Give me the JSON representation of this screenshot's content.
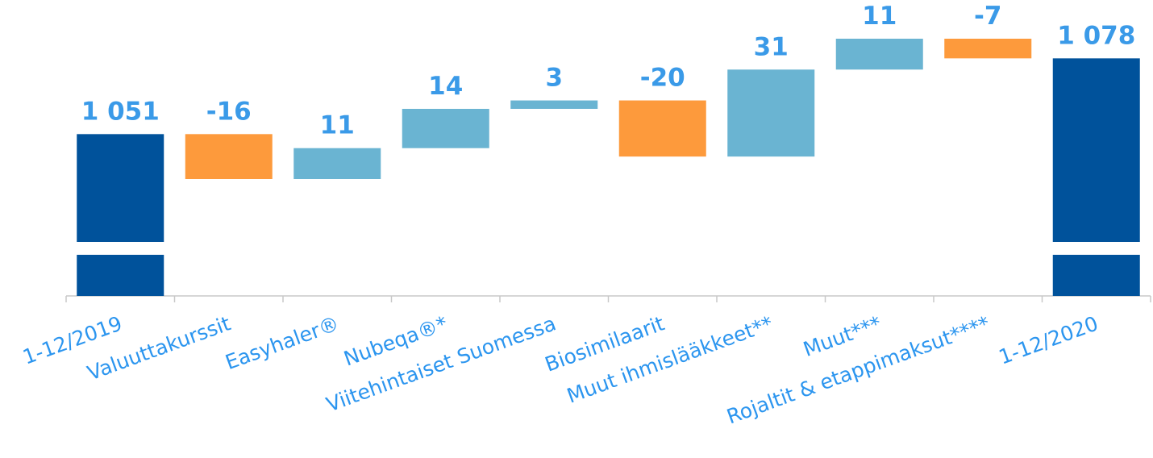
{
  "chart_data": {
    "type": "waterfall",
    "categories": [
      "1-12/2019",
      "Valuuttakurssit",
      "Easyhaler®",
      "Nubeqa®*",
      "Viitehintaiset Suomessa",
      "Biosimilaarit",
      "Muut ihmislääkkeet**",
      "Muut***",
      "Rojaltit & etappimaksut****",
      "1-12/2020"
    ],
    "values": [
      1051,
      -16,
      11,
      14,
      3,
      -20,
      31,
      11,
      -7,
      1078
    ],
    "value_labels": [
      "1 051",
      "-16",
      "11",
      "14",
      "3",
      "-20",
      "31",
      "11",
      "-7",
      "1 078"
    ],
    "total_color": "#00529b",
    "increase_color": "#6ab4d2",
    "decrease_color": "#fd9a3c",
    "broken_axis": true
  }
}
